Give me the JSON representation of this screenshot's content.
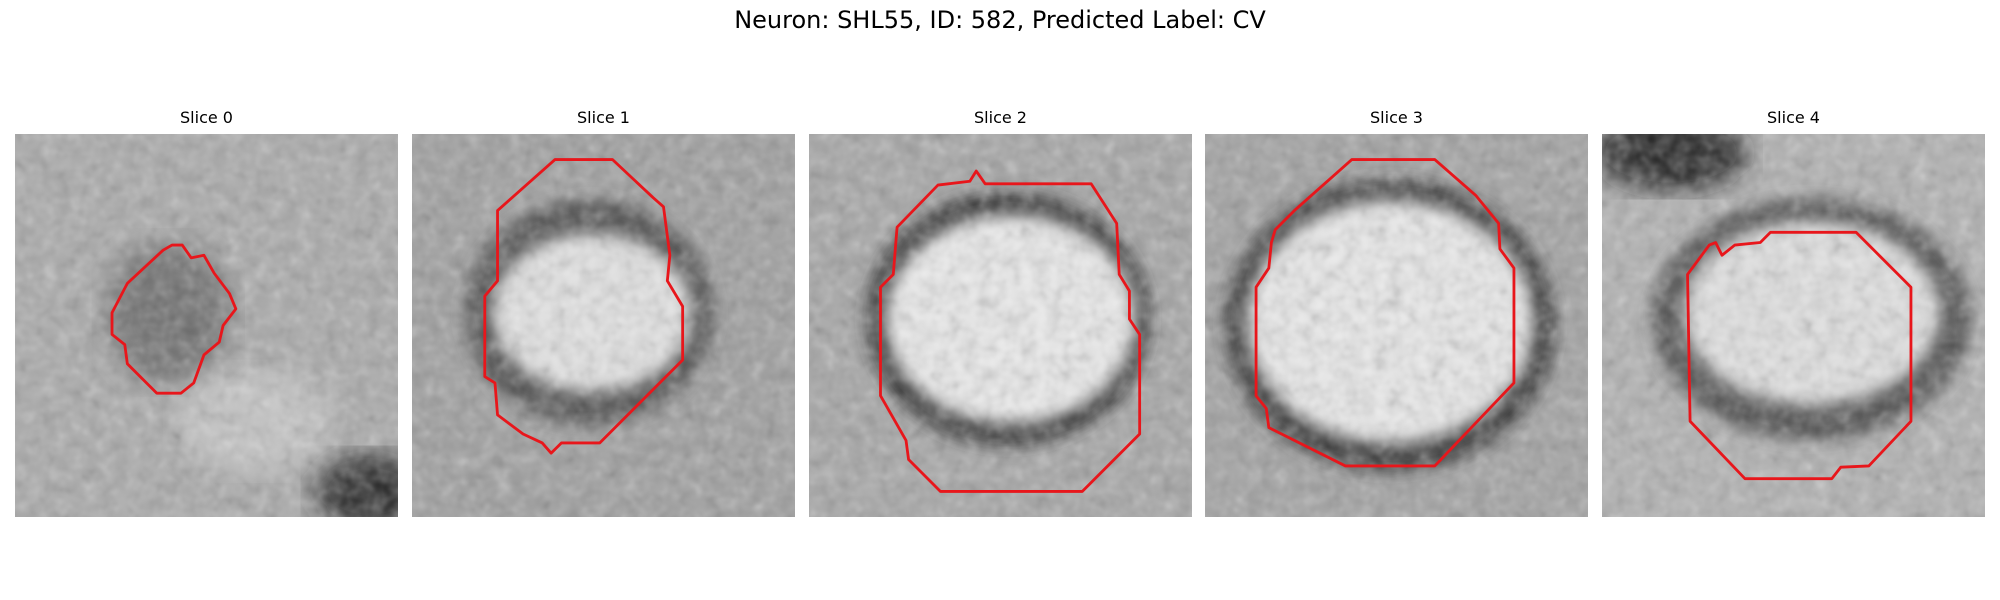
{
  "header": {
    "title": "Neuron: SHL55, ID: 582, Predicted Label: CV"
  },
  "slices": [
    {
      "title": "Slice 0"
    },
    {
      "title": "Slice 1"
    },
    {
      "title": "Slice 2"
    },
    {
      "title": "Slice 3"
    },
    {
      "title": "Slice 4"
    }
  ]
}
